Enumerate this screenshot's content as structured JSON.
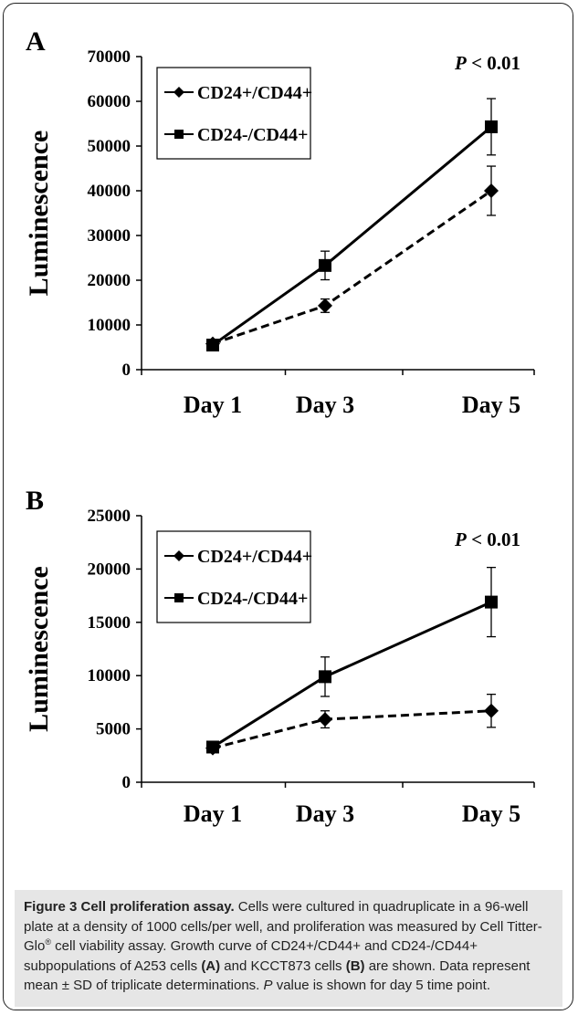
{
  "chart_data": [
    {
      "panel": "A",
      "type": "line",
      "ylabel": "Luminescence",
      "ylim": [
        0,
        70000
      ],
      "yticks": [
        0,
        10000,
        20000,
        30000,
        40000,
        50000,
        60000,
        70000
      ],
      "categories": [
        "Day 1",
        "Day 3",
        "Day 5"
      ],
      "annotation": {
        "italic": "P",
        "text": " < 0.01"
      },
      "legend_position": "top-left",
      "series": [
        {
          "name": "CD24+/CD44+",
          "marker": "diamond",
          "line": "dashed",
          "values": [
            5800,
            14300,
            40000
          ],
          "errors": [
            500,
            1500,
            5500
          ]
        },
        {
          "name": "CD24-/CD44+",
          "marker": "square",
          "line": "solid",
          "values": [
            5500,
            23300,
            54300
          ],
          "errors": [
            500,
            3200,
            6300
          ]
        }
      ]
    },
    {
      "panel": "B",
      "type": "line",
      "ylabel": "Luminescence",
      "ylim": [
        0,
        25000
      ],
      "yticks": [
        0,
        5000,
        10000,
        15000,
        20000,
        25000
      ],
      "categories": [
        "Day 1",
        "Day 3",
        "Day 5"
      ],
      "annotation": {
        "italic": "P",
        "text": " < 0.01"
      },
      "legend_position": "top-left",
      "series": [
        {
          "name": "CD24+/CD44+",
          "marker": "diamond",
          "line": "dashed",
          "values": [
            3200,
            5900,
            6700
          ],
          "errors": [
            200,
            800,
            1550
          ]
        },
        {
          "name": "CD24-/CD44+",
          "marker": "square",
          "line": "solid",
          "values": [
            3300,
            9900,
            16900
          ],
          "errors": [
            200,
            1850,
            3250
          ]
        }
      ]
    }
  ],
  "caption": {
    "label": "Figure 3 Cell proliferation assay.",
    "t1": " Cells were cultured in quadruplicate in a 96-well plate at a density of 1000 cells/per well, and proliferation was measured by Cell Titter-Glo",
    "sup": "®",
    "t2": " cell viability assay. Growth curve of CD24+/CD44+ and CD24-/CD44+ subpopulations of A253 cells ",
    "refA": "(A)",
    "t3": " and KCCT873 cells ",
    "refB": "(B)",
    "t4": " are shown. Data represent mean ± SD of triplicate determinations. ",
    "pItalic": "P",
    "t5": " value is shown for day 5 time point."
  }
}
